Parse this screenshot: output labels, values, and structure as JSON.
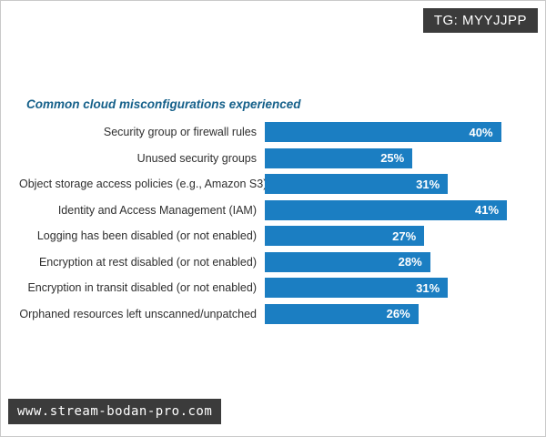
{
  "tag": {
    "label": "TG: MYYJJPP"
  },
  "watermark": {
    "url": "www.stream-bodan-pro.com"
  },
  "chart_data": {
    "type": "bar",
    "orientation": "horizontal",
    "title": "Common cloud misconfigurations experienced",
    "categories": [
      "Security group or firewall rules",
      "Unused security groups",
      "Object storage access policies (e.g., Amazon S3)",
      "Identity and Access Management (IAM)",
      "Logging has been disabled (or not enabled)",
      "Encryption at rest disabled (or not enabled)",
      "Encryption in transit disabled (or not enabled)",
      "Orphaned resources left unscanned/unpatched"
    ],
    "values": [
      40,
      25,
      31,
      41,
      27,
      28,
      31,
      26
    ],
    "value_suffix": "%",
    "xlim": [
      0,
      45
    ],
    "grid": false,
    "legend": false,
    "colors": {
      "bar": "#1b7ec2",
      "title": "#15608a",
      "value_label": "#ffffff"
    }
  }
}
